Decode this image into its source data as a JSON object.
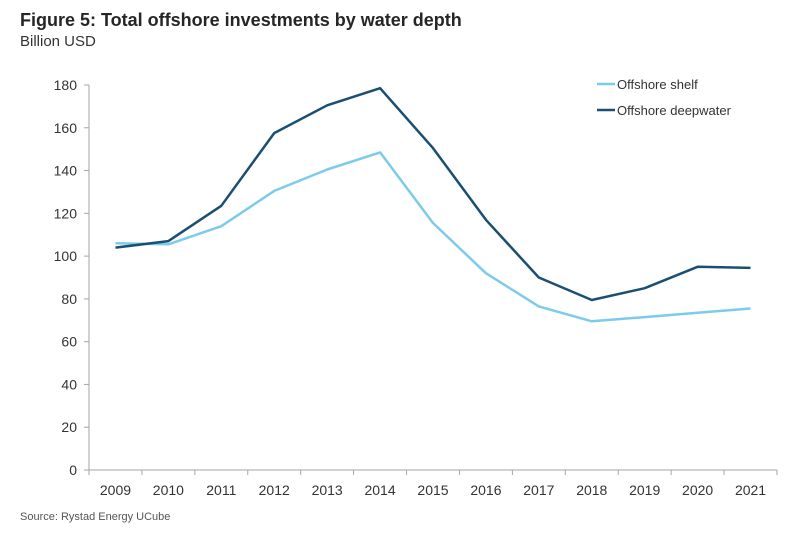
{
  "chart_data": {
    "type": "line",
    "title": "Figure 5: Total offshore investments by water depth",
    "subtitle": "Billion USD",
    "source": "Source: Rystad Energy UCube",
    "xlabel": "",
    "ylabel": "Billion USD",
    "categories": [
      "2009",
      "2010",
      "2011",
      "2012",
      "2013",
      "2014",
      "2015",
      "2016",
      "2017",
      "2018",
      "2019",
      "2020",
      "2021"
    ],
    "ylim": [
      0,
      180
    ],
    "yticks": [
      0,
      20,
      40,
      60,
      80,
      100,
      120,
      140,
      160,
      180
    ],
    "grid": false,
    "legend_position": "top-right",
    "series": [
      {
        "name": "Offshore shelf",
        "color": "#7dcbeb",
        "values": [
          106,
          105.5,
          114,
          130.5,
          140.5,
          148.5,
          115.5,
          92,
          76.5,
          69.5,
          71.5,
          73.5,
          75.5
        ]
      },
      {
        "name": "Offshore deepwater",
        "color": "#1b4f72",
        "values": [
          104,
          107,
          123.5,
          157.5,
          170.5,
          178.5,
          150.5,
          117,
          90,
          79.5,
          85,
          95,
          94.5
        ]
      }
    ]
  }
}
